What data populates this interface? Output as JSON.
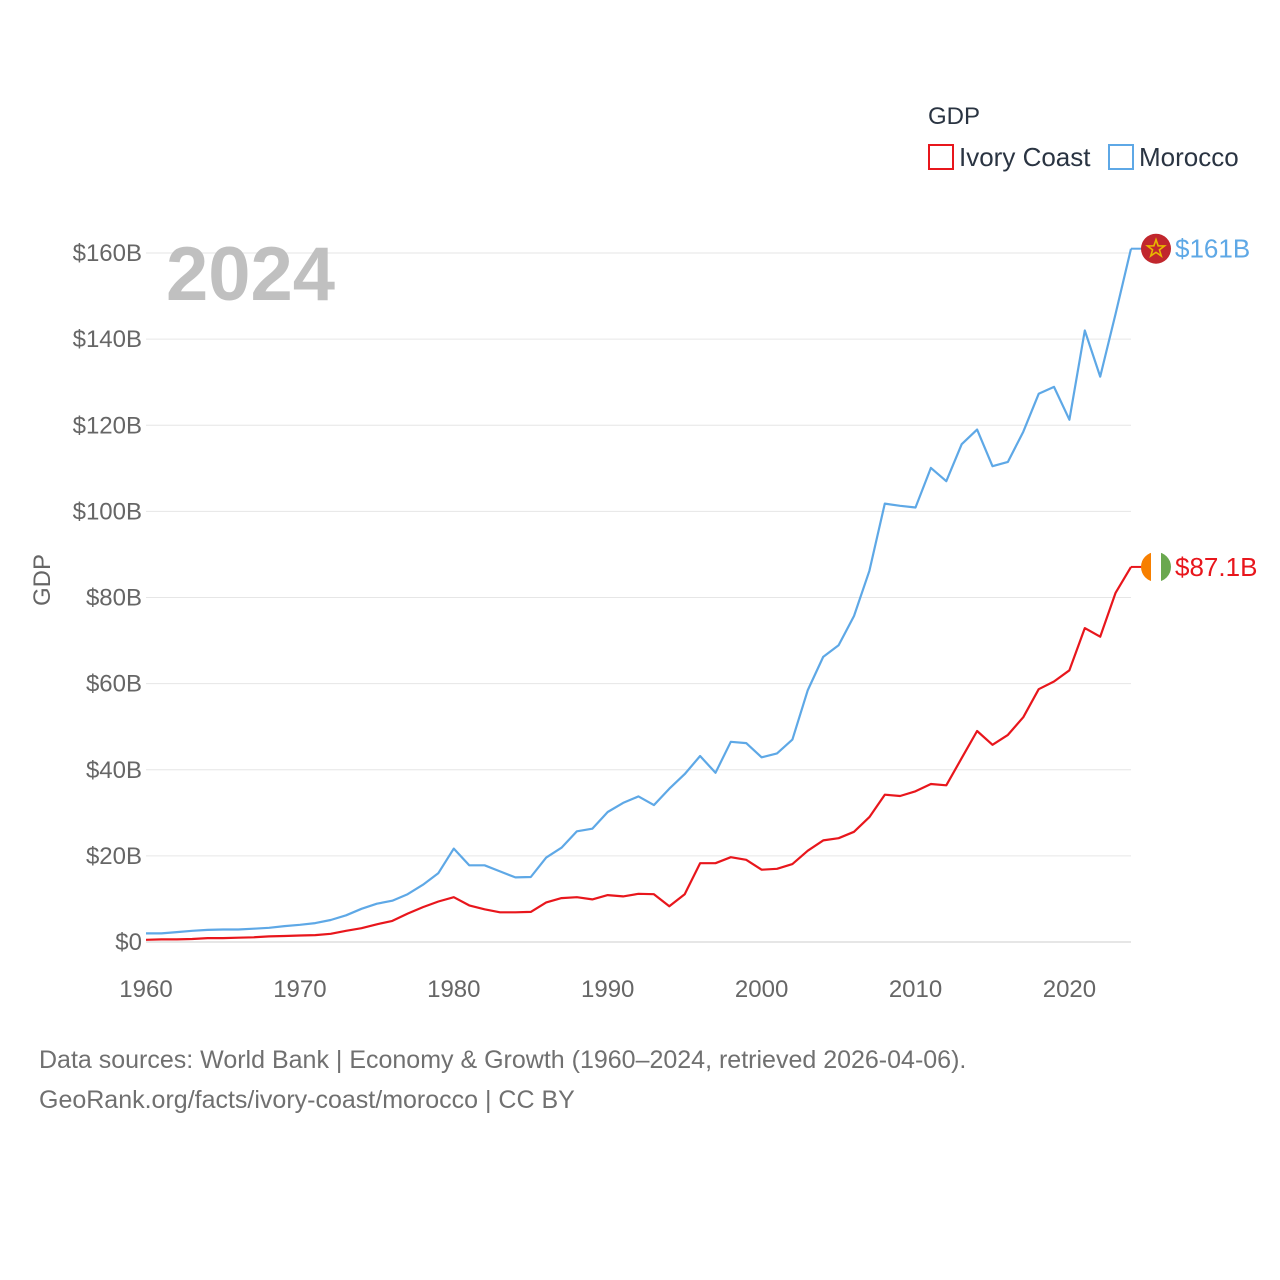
{
  "chart_data": {
    "type": "line",
    "title": "",
    "year_display": "2024",
    "ylabel": "GDP",
    "xlabel": "",
    "legend_title": "GDP",
    "legend_position": "top-right",
    "xlim": [
      1960,
      2024
    ],
    "ylim": [
      0,
      160
    ],
    "x_ticks": [
      1960,
      1970,
      1980,
      1990,
      2000,
      2010,
      2020
    ],
    "x_tick_labels": [
      "1960",
      "1970",
      "1980",
      "1990",
      "2000",
      "2010",
      "2020"
    ],
    "y_ticks": [
      0,
      20,
      40,
      60,
      80,
      100,
      120,
      140,
      160
    ],
    "y_tick_labels": [
      "$0",
      "$20B",
      "$40B",
      "$60B",
      "$80B",
      "$100B",
      "$120B",
      "$140B",
      "$160B"
    ],
    "x": [
      1960,
      1961,
      1962,
      1963,
      1964,
      1965,
      1966,
      1967,
      1968,
      1969,
      1970,
      1971,
      1972,
      1973,
      1974,
      1975,
      1976,
      1977,
      1978,
      1979,
      1980,
      1981,
      1982,
      1983,
      1984,
      1985,
      1986,
      1987,
      1988,
      1989,
      1990,
      1991,
      1992,
      1993,
      1994,
      1995,
      1996,
      1997,
      1998,
      1999,
      2000,
      2001,
      2002,
      2003,
      2004,
      2005,
      2006,
      2007,
      2008,
      2009,
      2010,
      2011,
      2012,
      2013,
      2014,
      2015,
      2016,
      2017,
      2018,
      2019,
      2020,
      2021,
      2022,
      2023,
      2024
    ],
    "series": [
      {
        "name": "Ivory Coast",
        "color": "#e8161c",
        "end_label": "$87.1B",
        "values": [
          0.5,
          0.6,
          0.6,
          0.7,
          0.9,
          0.9,
          1.0,
          1.1,
          1.3,
          1.4,
          1.5,
          1.6,
          1.9,
          2.6,
          3.2,
          4.1,
          4.9,
          6.6,
          8.1,
          9.4,
          10.4,
          8.5,
          7.6,
          6.9,
          6.9,
          7.0,
          9.2,
          10.2,
          10.4,
          9.9,
          10.9,
          10.6,
          11.2,
          11.1,
          8.3,
          11.1,
          18.3,
          18.3,
          19.7,
          19.1,
          16.8,
          17.0,
          18.1,
          21.2,
          23.6,
          24.1,
          25.6,
          29.0,
          34.2,
          33.9,
          35.0,
          36.7,
          36.4,
          42.7,
          49.0,
          45.8,
          48.1,
          52.2,
          58.7,
          60.5,
          63.1,
          72.9,
          70.9,
          81.1,
          87.1
        ]
      },
      {
        "name": "Morocco",
        "color": "#5ea8e6",
        "end_label": "$161B",
        "values": [
          2.0,
          2.0,
          2.3,
          2.6,
          2.8,
          2.9,
          2.9,
          3.1,
          3.3,
          3.7,
          4.0,
          4.4,
          5.1,
          6.2,
          7.7,
          8.9,
          9.6,
          11.1,
          13.3,
          16.0,
          21.7,
          17.8,
          17.8,
          16.4,
          15.0,
          15.1,
          19.6,
          21.9,
          25.7,
          26.3,
          30.2,
          32.3,
          33.8,
          31.8,
          35.6,
          39.0,
          43.2,
          39.3,
          46.5,
          46.2,
          42.9,
          43.8,
          47.0,
          58.5,
          66.2,
          68.9,
          75.7,
          86.2,
          101.8,
          101.3,
          100.9,
          110.1,
          107.0,
          115.6,
          119.0,
          110.5,
          111.5,
          118.5,
          127.3,
          128.9,
          121.3,
          142.0,
          131.3,
          145.9,
          161.0
        ]
      }
    ]
  },
  "footer": {
    "line1": "Data sources: World Bank | Economy & Growth (1960–2024, retrieved 2026-04-06).",
    "line2": "GeoRank.org/facts/ivory-coast/morocco | CC BY"
  }
}
